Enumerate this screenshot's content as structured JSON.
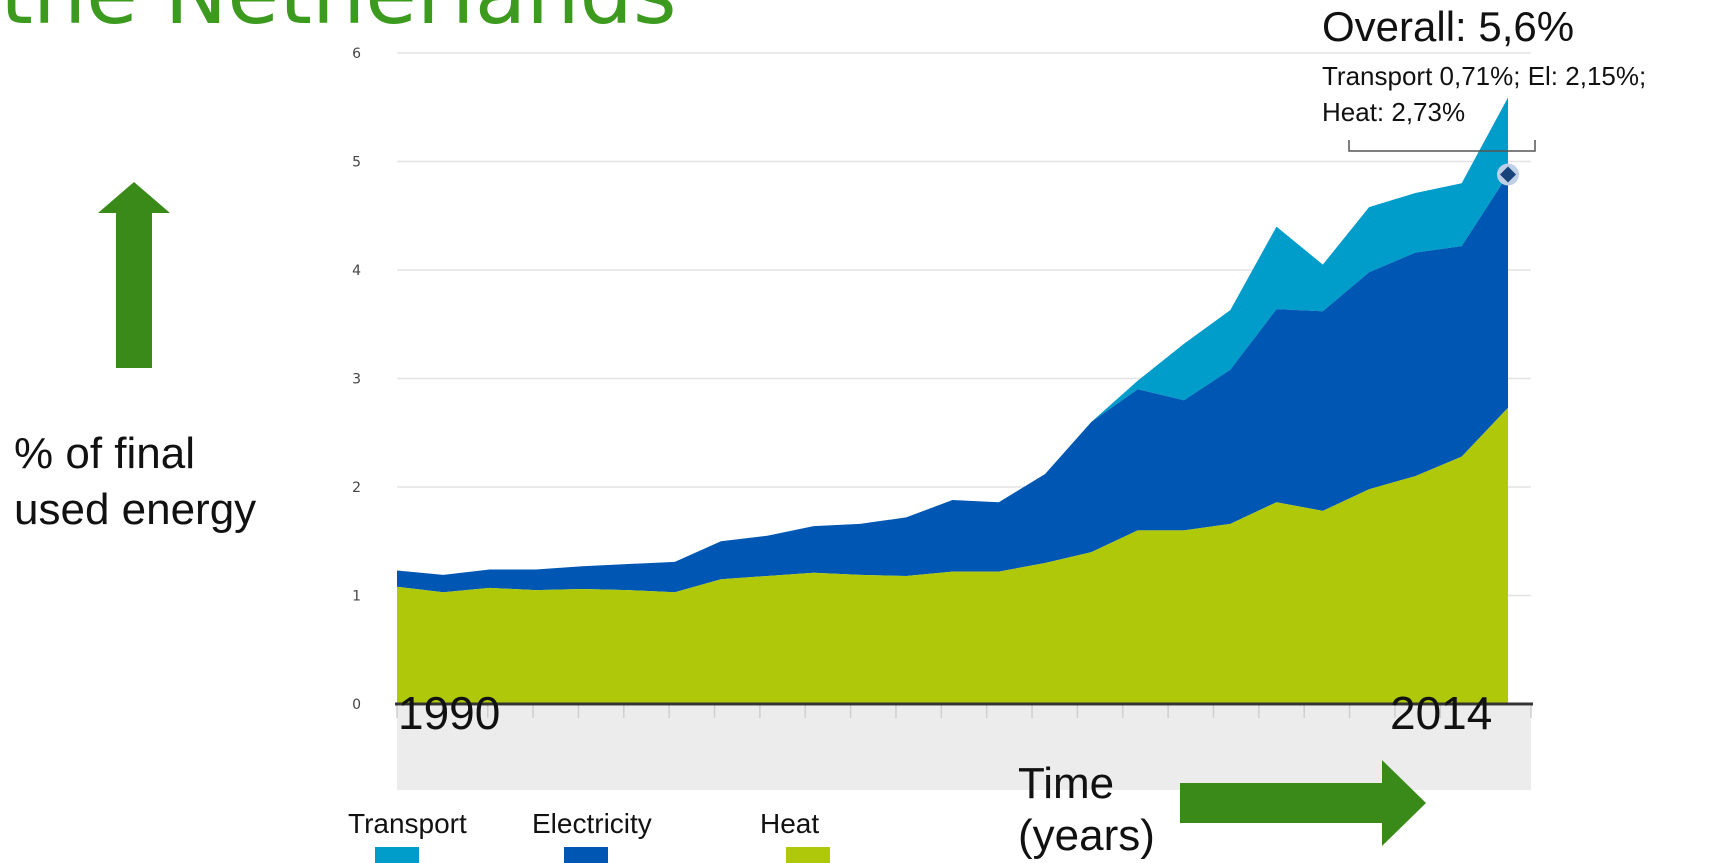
{
  "title_fragment": "the Netherlands",
  "colors": {
    "title": "#3c9a1e",
    "heat": "#afc80a",
    "electricity": "#0057b3",
    "transport": "#009dcb",
    "arrow": "#3a8a1a",
    "grid": "#e3e3e3",
    "navigator": "#ececec"
  },
  "ylabel": "% of final used energy",
  "ylabel_lines": [
    "% of final",
    "used energy"
  ],
  "time_label_lines": [
    "Time",
    "(years)"
  ],
  "annotation": {
    "title": "Overall: 5,6%",
    "line1": "Transport 0,71%; El: 2,15%;",
    "line2": "Heat: 2,73%"
  },
  "chart_data": {
    "type": "area",
    "stacked": true,
    "x": [
      1990,
      1991,
      1992,
      1993,
      1994,
      1995,
      1996,
      1997,
      1998,
      1999,
      2000,
      2001,
      2002,
      2003,
      2004,
      2005,
      2006,
      2007,
      2008,
      2009,
      2010,
      2011,
      2012,
      2013,
      2014
    ],
    "x_labels_shown": [
      "1990",
      "2014"
    ],
    "yticks": [
      "0",
      "1",
      "2",
      "3",
      "4",
      "5",
      "6"
    ],
    "ylim": [
      0,
      6
    ],
    "series": [
      {
        "name": "Heat",
        "values": [
          1.08,
          1.03,
          1.07,
          1.05,
          1.06,
          1.05,
          1.03,
          1.15,
          1.18,
          1.21,
          1.19,
          1.18,
          1.22,
          1.22,
          1.3,
          1.4,
          1.6,
          1.6,
          1.66,
          1.86,
          1.78,
          1.98,
          2.1,
          2.28,
          2.73
        ]
      },
      {
        "name": "Electricity",
        "values": [
          0.15,
          0.16,
          0.17,
          0.19,
          0.21,
          0.24,
          0.28,
          0.35,
          0.37,
          0.43,
          0.47,
          0.54,
          0.66,
          0.64,
          0.82,
          1.2,
          1.3,
          1.2,
          1.42,
          1.78,
          1.84,
          2.0,
          2.06,
          1.94,
          2.15
        ]
      },
      {
        "name": "Transport",
        "values": [
          0,
          0,
          0,
          0,
          0,
          0,
          0,
          0,
          0,
          0,
          0,
          0,
          0,
          0,
          0,
          0,
          0.08,
          0.52,
          0.55,
          0.76,
          0.43,
          0.6,
          0.55,
          0.58,
          0.71
        ]
      }
    ],
    "legend": [
      "Transport",
      "Electricity",
      "Heat"
    ],
    "legend_position": "bottom-left",
    "grid": true,
    "highlight_point": {
      "x": 2014,
      "y": 4.88
    }
  }
}
